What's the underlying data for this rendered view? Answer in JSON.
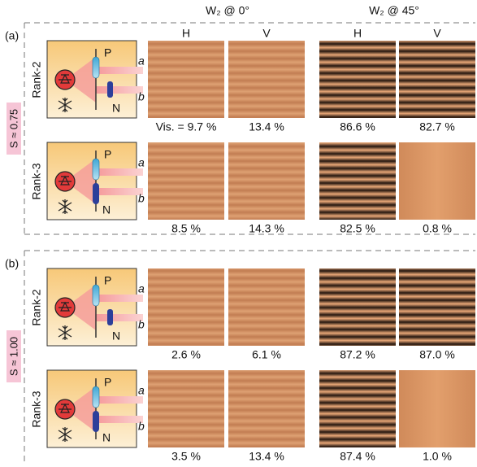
{
  "header": {
    "col_groups": [
      "W₂ @ 0°",
      "W₂ @ 45°"
    ],
    "columns": [
      "H",
      "V",
      "H",
      "V"
    ]
  },
  "panels": [
    {
      "label": "(a)",
      "s_label": "S ≈ 0.75",
      "rows": [
        {
          "rank": "Rank-2",
          "schematic": {
            "p": "P",
            "n": "N",
            "a": "a",
            "b": "b"
          },
          "visibilities": [
            "Vis. = 9.7 %",
            "13.4 %",
            "86.6 %",
            "82.7 %"
          ]
        },
        {
          "rank": "Rank-3",
          "schematic": {
            "p": "P",
            "n": "N",
            "a": "a",
            "b": "b"
          },
          "visibilities": [
            "8.5 %",
            "14.3 %",
            "82.5 %",
            "0.8 %"
          ]
        }
      ]
    },
    {
      "label": "(b)",
      "s_label": "S ≈ 1.00",
      "rows": [
        {
          "rank": "Rank-2",
          "schematic": {
            "p": "P",
            "n": "N",
            "a": "a",
            "b": "b"
          },
          "visibilities": [
            "2.6 %",
            "6.1 %",
            "87.2 %",
            "87.0 %"
          ]
        },
        {
          "rank": "Rank-3",
          "schematic": {
            "p": "P",
            "n": "N",
            "a": "a",
            "b": "b"
          },
          "visibilities": [
            "3.5 %",
            "13.4 %",
            "87.4 %",
            "1.0 %"
          ]
        }
      ]
    }
  ]
}
